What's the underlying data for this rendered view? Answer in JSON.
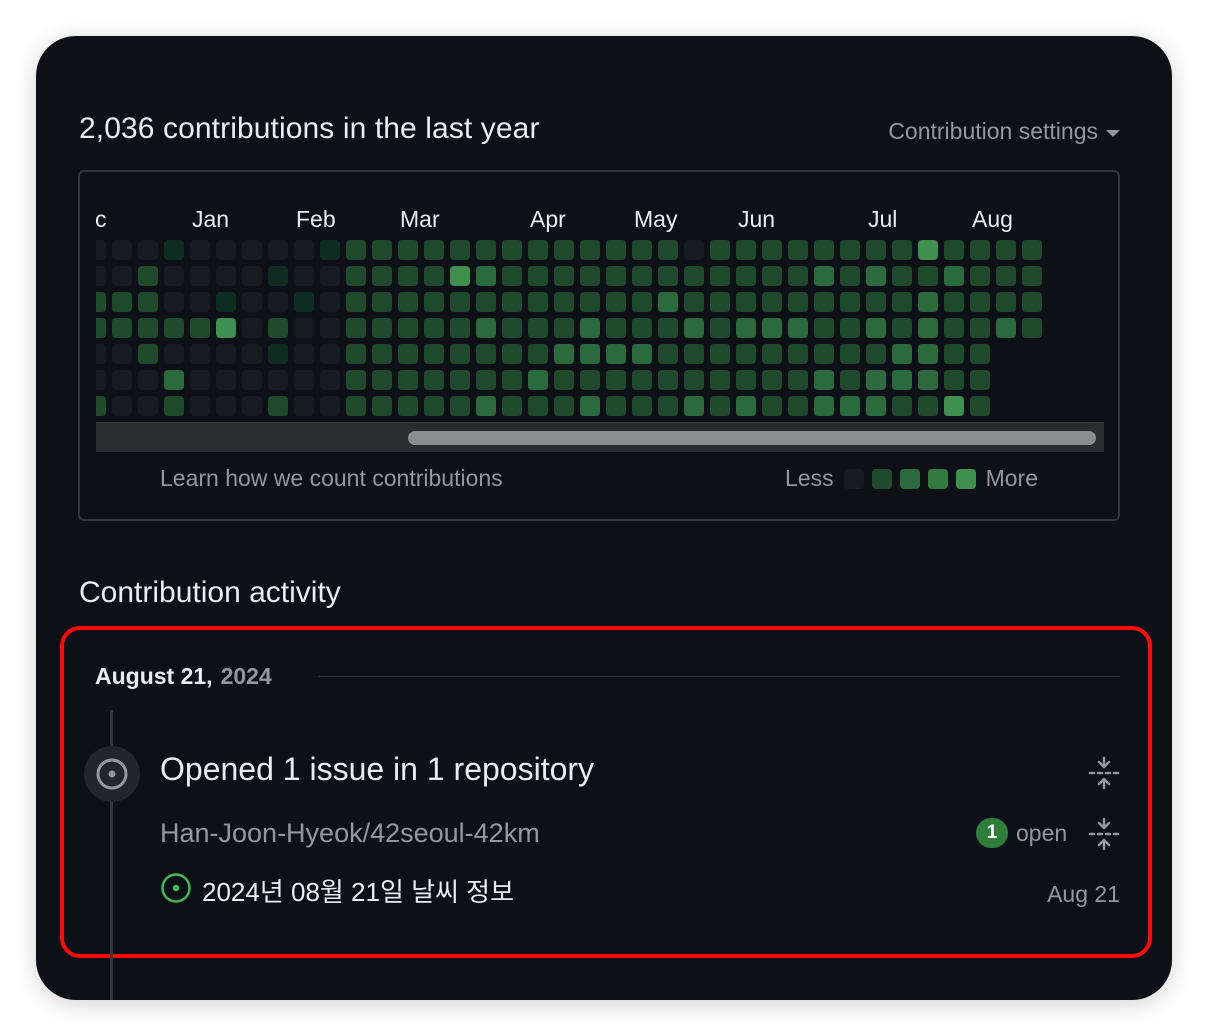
{
  "contributions": {
    "title": "2,036 contributions in the last year",
    "settings_label": "Contribution settings",
    "months": [
      "c",
      "Jan",
      "Feb",
      "Mar",
      "Apr",
      "May",
      "Jun",
      "Jul",
      "Aug"
    ],
    "learn_link": "Learn how we count contributions",
    "legend_less": "Less",
    "legend_more": "More",
    "legend_colors": [
      "#161b22",
      "#0e4429",
      "#1f4a2c",
      "#2b6a3c",
      "#3f8f4f"
    ]
  },
  "activity": {
    "title": "Contribution activity",
    "date_main": "August 21,",
    "date_year": "2024",
    "summary": "Opened 1 issue in 1 repository",
    "repo": "Han-Joon-Hyeok/42seoul-42km",
    "open_count": "1",
    "open_label": "open",
    "issue_title": "2024년 08월 21일 날씨 정보",
    "issue_date": "Aug 21"
  },
  "colors": {
    "background": "#0d1117",
    "text": "#e6edf3",
    "muted": "#9198a1",
    "border": "#30363d",
    "accent_green": "#2f7d3b",
    "highlight": "#ff0a0a"
  }
}
